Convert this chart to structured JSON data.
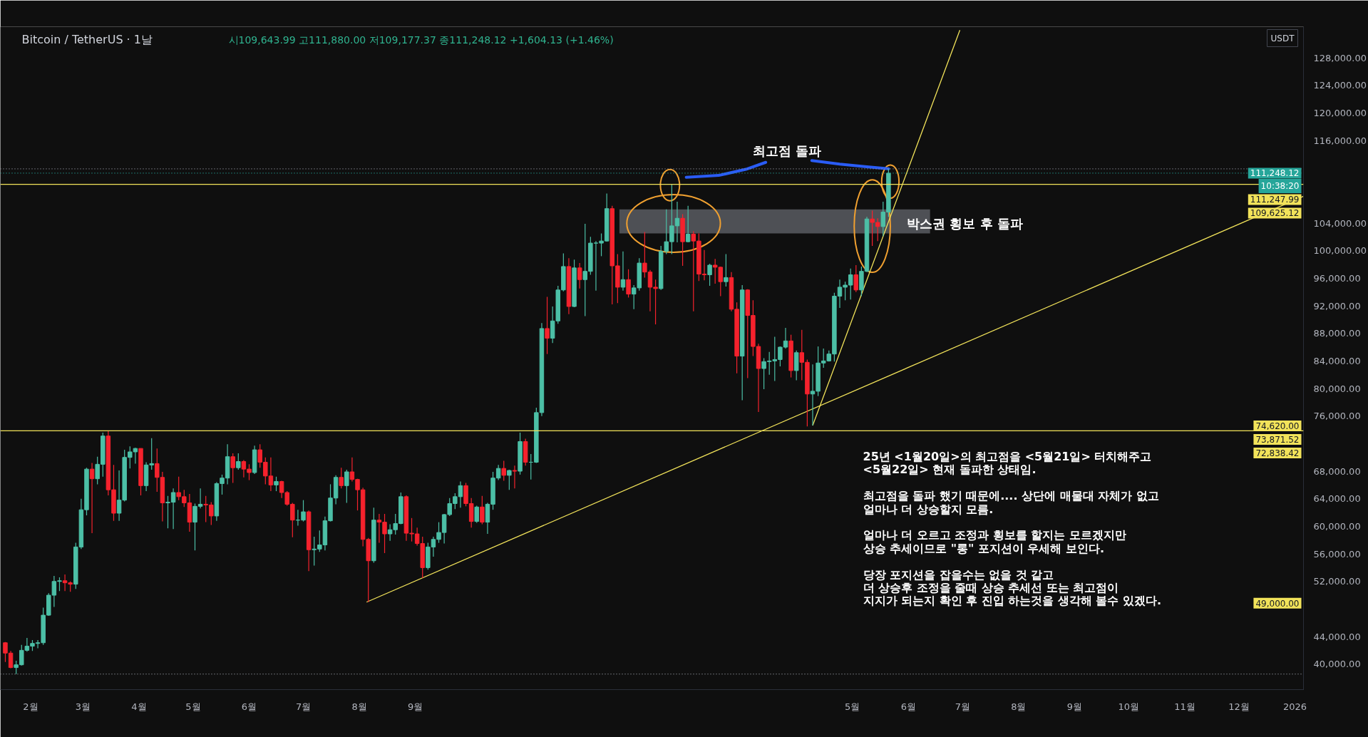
{
  "chart_data": {
    "type": "candlestick",
    "title": "Bitcoin / TetherUS · 1날",
    "subtitle": "시109,643.99 고111,880.00 저109,177.37 종111,248.12 +1,604.13 (+1.46%)",
    "ylabel": "USDT",
    "xlim": [
      "2024-01-15T06:00",
      "2026-01-05T18:00"
    ],
    "ylim": [
      36300,
      132500
    ],
    "xticks": [
      {
        "value": "2024-02-01",
        "label": "2월"
      },
      {
        "value": "2024-03-01",
        "label": "3월"
      },
      {
        "value": "2024-04-01",
        "label": "4월"
      },
      {
        "value": "2024-05-01",
        "label": "5월"
      },
      {
        "value": "2024-06-01",
        "label": "6월"
      },
      {
        "value": "2024-07-01",
        "label": "7월"
      },
      {
        "value": "2024-08-01",
        "label": "8월"
      },
      {
        "value": "2024-09-01",
        "label": "9월"
      },
      {
        "value": "2025-05-01",
        "label": "5월"
      },
      {
        "value": "2025-06-01",
        "label": "6월"
      },
      {
        "value": "2025-07-01",
        "label": "7월"
      },
      {
        "value": "2025-08-01",
        "label": "8월"
      },
      {
        "value": "2025-09-01",
        "label": "9월"
      },
      {
        "value": "2025-10-01",
        "label": "10월"
      },
      {
        "value": "2025-11-01",
        "label": "11월"
      },
      {
        "value": "2025-12-01",
        "label": "12월"
      },
      {
        "value": "2026-01-01",
        "label": "2026"
      }
    ],
    "yticks": [
      {
        "value": 40000,
        "label": "40,000.00"
      },
      {
        "value": 44000,
        "label": "44,000.00"
      },
      {
        "value": 52000,
        "label": "52,000.00"
      },
      {
        "value": 56000,
        "label": "56,000.00"
      },
      {
        "value": 60000,
        "label": "60,000.00"
      },
      {
        "value": 64000,
        "label": "64,000.00"
      },
      {
        "value": 68000,
        "label": "68,000.00"
      },
      {
        "value": 76000,
        "label": "76,000.00"
      },
      {
        "value": 80000,
        "label": "80,000.00"
      },
      {
        "value": 84000,
        "label": "84,000.00"
      },
      {
        "value": 88000,
        "label": "88,000.00"
      },
      {
        "value": 92000,
        "label": "92,000.00"
      },
      {
        "value": 96000,
        "label": "96,000.00"
      },
      {
        "value": 100000,
        "label": "100,000.00"
      },
      {
        "value": 104000,
        "label": "104,000.00"
      },
      {
        "value": 116000,
        "label": "116,000.00"
      },
      {
        "value": 120000,
        "label": "120,000.00"
      },
      {
        "value": 124000,
        "label": "124,000.00"
      },
      {
        "value": 128000,
        "label": "128,000.00"
      }
    ],
    "x": [
      "2024-01-18",
      "2024-01-21",
      "2024-01-24",
      "2024-01-27",
      "2024-01-30",
      "2024-02-02",
      "2024-02-05",
      "2024-02-08",
      "2024-02-11",
      "2024-02-14",
      "2024-02-17",
      "2024-02-20",
      "2024-02-23",
      "2024-02-26",
      "2024-02-29",
      "2024-03-03",
      "2024-03-06",
      "2024-03-09",
      "2024-03-12",
      "2024-03-15",
      "2024-03-18",
      "2024-03-21",
      "2024-03-24",
      "2024-03-27",
      "2024-03-30",
      "2024-04-02",
      "2024-04-05",
      "2024-04-08",
      "2024-04-11",
      "2024-04-14",
      "2024-04-17",
      "2024-04-20",
      "2024-04-23",
      "2024-04-26",
      "2024-04-29",
      "2024-05-02",
      "2024-05-05",
      "2024-05-08",
      "2024-05-11",
      "2024-05-14",
      "2024-05-17",
      "2024-05-20",
      "2024-05-23",
      "2024-05-26",
      "2024-05-29",
      "2024-06-01",
      "2024-06-04",
      "2024-06-07",
      "2024-06-10",
      "2024-06-13",
      "2024-06-16",
      "2024-06-19",
      "2024-06-22",
      "2024-06-25",
      "2024-06-28",
      "2024-07-01",
      "2024-07-04",
      "2024-07-07",
      "2024-07-10",
      "2024-07-13",
      "2024-07-16",
      "2024-07-19",
      "2024-07-22",
      "2024-07-25",
      "2024-07-28",
      "2024-07-31",
      "2024-08-03",
      "2024-08-06",
      "2024-08-09",
      "2024-08-12",
      "2024-08-15",
      "2024-08-18",
      "2024-08-21",
      "2024-08-24",
      "2024-08-27",
      "2024-08-30",
      "2024-09-02",
      "2024-09-05",
      "2024-09-08",
      "2024-09-11",
      "2024-09-14",
      "2024-09-17",
      "2024-09-20",
      "2024-09-23",
      "2024-09-26",
      "2024-09-29",
      "2024-10-02",
      "2024-10-05",
      "2024-10-08",
      "2024-10-11",
      "2024-10-14",
      "2024-10-17",
      "2024-10-20",
      "2024-10-23",
      "2024-10-26",
      "2024-10-29",
      "2024-11-01",
      "2024-11-04",
      "2024-11-07",
      "2024-11-10",
      "2024-11-13",
      "2024-11-16",
      "2024-11-19",
      "2024-11-22",
      "2024-11-25",
      "2024-11-28",
      "2024-12-01",
      "2024-12-04",
      "2024-12-07",
      "2024-12-10",
      "2024-12-13",
      "2024-12-16",
      "2024-12-19",
      "2024-12-22",
      "2024-12-25",
      "2024-12-28",
      "2024-12-31",
      "2025-01-03",
      "2025-01-06",
      "2025-01-09",
      "2025-01-12",
      "2025-01-15",
      "2025-01-18",
      "2025-01-21",
      "2025-01-24",
      "2025-01-27",
      "2025-01-30",
      "2025-02-02",
      "2025-02-05",
      "2025-02-08",
      "2025-02-11",
      "2025-02-14",
      "2025-02-17",
      "2025-02-20",
      "2025-02-23",
      "2025-02-26",
      "2025-03-01",
      "2025-03-04",
      "2025-03-07",
      "2025-03-10",
      "2025-03-13",
      "2025-03-16",
      "2025-03-19",
      "2025-03-22",
      "2025-03-25",
      "2025-03-28",
      "2025-03-31",
      "2025-04-03",
      "2025-04-06",
      "2025-04-09",
      "2025-04-12",
      "2025-04-15",
      "2025-04-18",
      "2025-04-21",
      "2025-04-24",
      "2025-04-27",
      "2025-04-30",
      "2025-05-03",
      "2025-05-06",
      "2025-05-09",
      "2025-05-12",
      "2025-05-15",
      "2025-05-18",
      "2025-05-21"
    ],
    "ohlc": [
      [
        43100,
        43200,
        40300,
        41600
      ],
      [
        41600,
        41900,
        39400,
        39500
      ],
      [
        39500,
        40500,
        38555,
        39900
      ],
      [
        39900,
        42800,
        39800,
        42000
      ],
      [
        42000,
        43800,
        41800,
        42600
      ],
      [
        42600,
        43500,
        41900,
        43000
      ],
      [
        43000,
        43500,
        42300,
        43100
      ],
      [
        43100,
        48200,
        42800,
        47100
      ],
      [
        47100,
        50300,
        47000,
        50000
      ],
      [
        50000,
        52800,
        48300,
        52000
      ],
      [
        52000,
        52600,
        50600,
        52100
      ],
      [
        52100,
        53000,
        50600,
        51800
      ],
      [
        51800,
        52000,
        50500,
        51600
      ],
      [
        51600,
        57600,
        50900,
        57000
      ],
      [
        57000,
        64000,
        56700,
        62400
      ],
      [
        62400,
        68500,
        61600,
        68300
      ],
      [
        68300,
        69200,
        59000,
        66900
      ],
      [
        66900,
        70100,
        66100,
        69000
      ],
      [
        69000,
        73600,
        67200,
        73100
      ],
      [
        73100,
        73800,
        64500,
        65300
      ],
      [
        65300,
        68900,
        60800,
        61900
      ],
      [
        61900,
        68100,
        60800,
        63800
      ],
      [
        63800,
        71100,
        63600,
        70000
      ],
      [
        70000,
        71600,
        68400,
        70800
      ],
      [
        70800,
        71400,
        69100,
        71300
      ],
      [
        71300,
        71300,
        64500,
        65900
      ],
      [
        65900,
        69300,
        65100,
        68900
      ],
      [
        68900,
        72800,
        68200,
        69100
      ],
      [
        69100,
        71300,
        65000,
        67100
      ],
      [
        67100,
        67900,
        60700,
        63400
      ],
      [
        63400,
        64400,
        59700,
        63500
      ],
      [
        63500,
        65500,
        59600,
        64900
      ],
      [
        64900,
        67200,
        63800,
        64300
      ],
      [
        64300,
        65300,
        62800,
        63400
      ],
      [
        63400,
        64700,
        59200,
        60600
      ],
      [
        60600,
        63300,
        56500,
        62900
      ],
      [
        62900,
        65500,
        62600,
        63200
      ],
      [
        63200,
        64400,
        60600,
        63100
      ],
      [
        63100,
        63500,
        60200,
        61500
      ],
      [
        61500,
        66400,
        60800,
        66200
      ],
      [
        66200,
        67500,
        64600,
        67000
      ],
      [
        67000,
        71900,
        66100,
        70100
      ],
      [
        70100,
        70600,
        66300,
        68500
      ],
      [
        68500,
        70600,
        68200,
        69400
      ],
      [
        69400,
        69600,
        67100,
        68300
      ],
      [
        68300,
        69000,
        66700,
        67800
      ],
      [
        67800,
        71700,
        67600,
        71100
      ],
      [
        71100,
        71900,
        68500,
        69300
      ],
      [
        69300,
        70000,
        66100,
        67300
      ],
      [
        67300,
        70000,
        65100,
        66000
      ],
      [
        66000,
        67200,
        65100,
        66500
      ],
      [
        66500,
        66600,
        64100,
        64900
      ],
      [
        64900,
        65100,
        63000,
        63200
      ],
      [
        63200,
        63400,
        58400,
        60900
      ],
      [
        60900,
        62400,
        60100,
        60900
      ],
      [
        60900,
        63800,
        60700,
        62100
      ],
      [
        62100,
        62300,
        53500,
        56600
      ],
      [
        56600,
        58500,
        54300,
        56700
      ],
      [
        56700,
        59400,
        56300,
        57300
      ],
      [
        57300,
        61400,
        56500,
        60800
      ],
      [
        60800,
        66100,
        60700,
        64100
      ],
      [
        64100,
        67400,
        63200,
        67100
      ],
      [
        67100,
        68500,
        65500,
        65900
      ],
      [
        65900,
        68200,
        63400,
        67900
      ],
      [
        67900,
        70000,
        66500,
        66800
      ],
      [
        66800,
        66900,
        62300,
        65300
      ],
      [
        65300,
        65600,
        57100,
        58100
      ],
      [
        58100,
        58300,
        49000,
        55000
      ],
      [
        55000,
        62700,
        54700,
        60900
      ],
      [
        60900,
        61800,
        57600,
        60600
      ],
      [
        60600,
        61800,
        56100,
        58900
      ],
      [
        58900,
        60300,
        57900,
        59500
      ],
      [
        59500,
        61800,
        58800,
        60400
      ],
      [
        60400,
        64900,
        60300,
        64300
      ],
      [
        64300,
        64500,
        57900,
        59000
      ],
      [
        59000,
        61200,
        57800,
        58900
      ],
      [
        58900,
        59800,
        57200,
        57500
      ],
      [
        57500,
        58500,
        52500,
        54000
      ],
      [
        54000,
        57600,
        53700,
        57000
      ],
      [
        57000,
        58500,
        55600,
        58100
      ],
      [
        58100,
        60600,
        57600,
        59100
      ],
      [
        59100,
        61800,
        57500,
        61700
      ],
      [
        61700,
        64100,
        61500,
        63300
      ],
      [
        63300,
        64800,
        62500,
        64300
      ],
      [
        64300,
        66500,
        62700,
        65900
      ],
      [
        65900,
        66300,
        62900,
        63300
      ],
      [
        63300,
        64100,
        59800,
        60700
      ],
      [
        60700,
        63000,
        60500,
        62800
      ],
      [
        62800,
        64400,
        60300,
        60600
      ],
      [
        60600,
        63400,
        58900,
        63200
      ],
      [
        63200,
        67900,
        62400,
        67000
      ],
      [
        67000,
        68900,
        66700,
        68400
      ],
      [
        68400,
        69500,
        66600,
        67400
      ],
      [
        67400,
        68200,
        65300,
        68100
      ],
      [
        68100,
        68800,
        65500,
        68000
      ],
      [
        68000,
        73600,
        67500,
        72300
      ],
      [
        72300,
        72700,
        68800,
        69300
      ],
      [
        69300,
        70500,
        66800,
        69300
      ],
      [
        69300,
        77200,
        69200,
        76500
      ],
      [
        76500,
        89500,
        76000,
        88700
      ],
      [
        88700,
        93300,
        85000,
        87300
      ],
      [
        87300,
        91900,
        86600,
        89800
      ],
      [
        89800,
        94900,
        89400,
        94300
      ],
      [
        94300,
        99600,
        94100,
        97700
      ],
      [
        97700,
        98900,
        90800,
        91900
      ],
      [
        91900,
        98700,
        91800,
        97500
      ],
      [
        97500,
        98200,
        94500,
        95800
      ],
      [
        95800,
        103900,
        90500,
        97000
      ],
      [
        97000,
        102000,
        96500,
        101100
      ],
      [
        101100,
        101400,
        94200,
        101100
      ],
      [
        101100,
        102500,
        99200,
        101400
      ],
      [
        101400,
        108300,
        101300,
        106100
      ],
      [
        106100,
        106500,
        92200,
        97800
      ],
      [
        97800,
        99500,
        92400,
        94700
      ],
      [
        94700,
        99900,
        94200,
        95800
      ],
      [
        95800,
        97300,
        93200,
        93700
      ],
      [
        93700,
        95000,
        91500,
        94600
      ],
      [
        94600,
        98900,
        94200,
        98200
      ],
      [
        98200,
        102700,
        96100,
        96900
      ],
      [
        96900,
        97200,
        91200,
        94700
      ],
      [
        94700,
        95800,
        89300,
        94500
      ],
      [
        94500,
        100700,
        94300,
        99900
      ],
      [
        99900,
        106000,
        99500,
        101300
      ],
      [
        101300,
        109600,
        99500,
        103600
      ],
      [
        103600,
        107100,
        101200,
        104700
      ],
      [
        104700,
        105300,
        97800,
        101300
      ],
      [
        101300,
        106500,
        101200,
        102400
      ],
      [
        102400,
        102800,
        91200,
        101400
      ],
      [
        101400,
        102500,
        95600,
        96600
      ],
      [
        96600,
        100100,
        95700,
        96500
      ],
      [
        96500,
        98100,
        94900,
        97900
      ],
      [
        97900,
        98800,
        95200,
        97600
      ],
      [
        97600,
        97700,
        93400,
        95500
      ],
      [
        95500,
        99500,
        94800,
        96100
      ],
      [
        96100,
        96900,
        91200,
        91500
      ],
      [
        91500,
        92500,
        82200,
        84700
      ],
      [
        84700,
        95000,
        78300,
        94300
      ],
      [
        94300,
        94400,
        81500,
        90600
      ],
      [
        90600,
        92800,
        84700,
        86100
      ],
      [
        86100,
        86500,
        76600,
        82900
      ],
      [
        82900,
        84400,
        79900,
        83900
      ],
      [
        83900,
        85300,
        82000,
        84000
      ],
      [
        84000,
        87500,
        81100,
        84200
      ],
      [
        84200,
        86100,
        83200,
        86000
      ],
      [
        86000,
        88800,
        85800,
        86900
      ],
      [
        86900,
        87800,
        81600,
        82600
      ],
      [
        82600,
        85500,
        81200,
        85200
      ],
      [
        85200,
        88500,
        81200,
        83800
      ],
      [
        83800,
        84200,
        74500,
        79200
      ],
      [
        79200,
        83500,
        74620,
        79600
      ],
      [
        79600,
        86100,
        78900,
        83700
      ],
      [
        83700,
        85800,
        83000,
        84000
      ],
      [
        84000,
        85500,
        83900,
        85000
      ],
      [
        85000,
        93900,
        83900,
        93400
      ],
      [
        93400,
        95800,
        91700,
        94700
      ],
      [
        94700,
        95500,
        92800,
        95000
      ],
      [
        95000,
        97400,
        92900,
        96500
      ],
      [
        96500,
        97900,
        94000,
        94300
      ],
      [
        94300,
        97700,
        93400,
        97000
      ],
      [
        97000,
        104900,
        96900,
        104600
      ],
      [
        104600,
        105800,
        100700,
        104100
      ],
      [
        104100,
        104700,
        101400,
        103500
      ],
      [
        103500,
        107100,
        102100,
        105600
      ],
      [
        105600,
        111880,
        104900,
        111248.12
      ]
    ],
    "colors": [
      "#f5222d",
      "#f5222d",
      "#4cbfa6",
      "#4cbfa6",
      "#4cbfa6",
      "#4cbfa6",
      "#4cbfa6",
      "#4cbfa6",
      "#4cbfa6",
      "#4cbfa6",
      "#4cbfa6",
      "#f5222d",
      "#f5222d",
      "#4cbfa6",
      "#4cbfa6",
      "#4cbfa6",
      "#f5222d",
      "#4cbfa6",
      "#4cbfa6",
      "#f5222d",
      "#f5222d",
      "#4cbfa6",
      "#4cbfa6",
      "#4cbfa6",
      "#4cbfa6",
      "#f5222d",
      "#4cbfa6",
      "#4cbfa6",
      "#f5222d",
      "#f5222d",
      "#4cbfa6",
      "#4cbfa6",
      "#f5222d",
      "#f5222d",
      "#f5222d",
      "#4cbfa6",
      "#4cbfa6",
      "#f5222d",
      "#f5222d",
      "#4cbfa6",
      "#4cbfa6",
      "#4cbfa6",
      "#f5222d",
      "#4cbfa6",
      "#f5222d",
      "#f5222d",
      "#4cbfa6",
      "#f5222d",
      "#f5222d",
      "#f5222d",
      "#4cbfa6",
      "#f5222d",
      "#f5222d",
      "#f5222d",
      "#4cbfa6",
      "#4cbfa6",
      "#f5222d",
      "#4cbfa6",
      "#4cbfa6",
      "#4cbfa6",
      "#4cbfa6",
      "#4cbfa6",
      "#f5222d",
      "#4cbfa6",
      "#f5222d",
      "#f5222d",
      "#f5222d",
      "#f5222d",
      "#4cbfa6",
      "#f5222d",
      "#f5222d",
      "#4cbfa6",
      "#4cbfa6",
      "#4cbfa6",
      "#f5222d",
      "#f5222d",
      "#f5222d",
      "#f5222d",
      "#4cbfa6",
      "#4cbfa6",
      "#4cbfa6",
      "#4cbfa6",
      "#4cbfa6",
      "#4cbfa6",
      "#4cbfa6",
      "#f5222d",
      "#f5222d",
      "#4cbfa6",
      "#f5222d",
      "#4cbfa6",
      "#4cbfa6",
      "#4cbfa6",
      "#f5222d",
      "#4cbfa6",
      "#f5222d",
      "#4cbfa6",
      "#f5222d",
      "#4cbfa6",
      "#4cbfa6",
      "#4cbfa6",
      "#f5222d",
      "#4cbfa6",
      "#4cbfa6",
      "#4cbfa6",
      "#f5222d",
      "#4cbfa6",
      "#f5222d",
      "#4cbfa6",
      "#4cbfa6",
      "#4cbfa6",
      "#4cbfa6",
      "#4cbfa6",
      "#f5222d",
      "#f5222d",
      "#4cbfa6",
      "#f5222d",
      "#4cbfa6",
      "#4cbfa6",
      "#f5222d",
      "#f5222d",
      "#f5222d",
      "#4cbfa6",
      "#4cbfa6",
      "#4cbfa6",
      "#4cbfa6",
      "#f5222d",
      "#4cbfa6",
      "#f5222d",
      "#f5222d",
      "#f5222d",
      "#4cbfa6",
      "#f5222d",
      "#f5222d",
      "#4cbfa6",
      "#f5222d",
      "#f5222d",
      "#4cbfa6",
      "#f5222d",
      "#f5222d",
      "#f5222d",
      "#4cbfa6",
      "#4cbfa6",
      "#4cbfa6",
      "#4cbfa6",
      "#4cbfa6",
      "#f5222d",
      "#4cbfa6",
      "#f5222d",
      "#f5222d",
      "#4cbfa6",
      "#4cbfa6",
      "#4cbfa6",
      "#4cbfa6",
      "#4cbfa6",
      "#4cbfa6",
      "#4cbfa6",
      "#4cbfa6",
      "#f5222d",
      "#4cbfa6",
      "#4cbfa6",
      "#f5222d",
      "#f5222d",
      "#4cbfa6",
      "#4cbfa6"
    ],
    "series": [
      {
        "type": "line",
        "x": [
          "2024-08-05",
          "2025-03-03",
          "2026-01-05T18:00"
        ],
        "values": [
          49000,
          72838.42,
          107900
        ],
        "color": "#f2e35a"
      },
      {
        "type": "line",
        "x": [
          "2025-04-09",
          "2025-05-31",
          "2025-06-29T12:00"
        ],
        "values": [
          74620,
          111247.99,
          132000
        ],
        "color": "#f2e35a"
      }
    ],
    "bands": [
      {
        "axis": "y",
        "from": 102500,
        "to": 106000,
        "color": "#4e5055"
      }
    ],
    "ref_lines": [
      {
        "axis": "y",
        "value": 109625.12,
        "label": "109,625.12",
        "color": "#f2e35a"
      },
      {
        "axis": "y",
        "value": 73871.52,
        "label": "73,871.52",
        "color": "#f2e35a"
      },
      {
        "axis": "y",
        "value": 111248.12,
        "label": "111,248.12\n10:38:20",
        "color": "#26a69a",
        "line_style": "dotted"
      },
      {
        "axis": "y",
        "value": 111880,
        "label": null,
        "color": "#9598a1",
        "line_style": "dotted"
      },
      {
        "axis": "y",
        "value": 38555,
        "label": null,
        "color": "#9598a1",
        "line_style": "dotted"
      }
    ],
    "annotations": [
      {
        "text": "최고점 돌파",
        "x": "2025-05-21",
        "y": 111880
      },
      "박스권 횡보 후 돌파",
      "25년 <1월20일>의 최고점을 <5월21일> 터치해주고\n<5월22일> 현재 돌파한 상태임.\n\n최고점을 돌파 했기 때문에.... 상단에 매물대 자체가 없고\n얼마나 더 상승할지 모름.\n\n얼마나 더 오르고 조정과 횡보를 할지는 모르겠지만\n상승 추세이므로 \"롱\" 포지션이 우세해 보인다.\n\n당장 포지션을 잡을수는 없을 것 같고\n더 상승후 조정을 줄때 상승 추세선 또는 최고점이\n지지가 되는지 확인 후 진입 하는것을 생각해 볼수 있겠다.",
      "111,247.99",
      "74,620.00",
      "72,838.42",
      "49,000.00"
    ]
  }
}
